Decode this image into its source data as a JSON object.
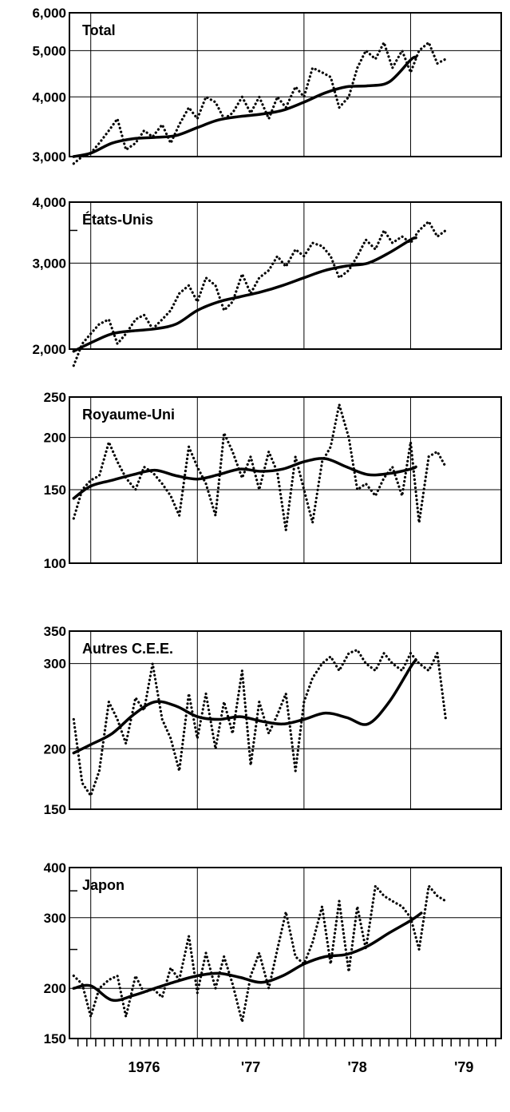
{
  "chart_data": [
    {
      "type": "line",
      "title": "Total",
      "yscale": "log",
      "ylim": [
        3000,
        6000
      ],
      "yticks": [
        {
          "value": 3000,
          "label": "3,000"
        },
        {
          "value": 4000,
          "label": "4,000"
        },
        {
          "value": 5000,
          "label": "5,000"
        },
        {
          "value": 6000,
          "label": "6,000"
        }
      ],
      "minor_yticks": [],
      "xlim": [
        1975.8,
        1979.85
      ],
      "series": [
        {
          "style": "trend",
          "x": [
            1975.84,
            1976.0,
            1976.2,
            1976.4,
            1976.6,
            1976.8,
            1977.0,
            1977.2,
            1977.4,
            1977.6,
            1977.8,
            1978.0,
            1978.2,
            1978.4,
            1978.6,
            1978.8,
            1979.0,
            1979.05
          ],
          "y": [
            3000,
            3050,
            3200,
            3270,
            3290,
            3320,
            3450,
            3580,
            3640,
            3680,
            3750,
            3900,
            4080,
            4200,
            4220,
            4300,
            4780,
            4850
          ]
        },
        {
          "style": "raw",
          "x": [
            1975.84,
            1975.92,
            1976.0,
            1976.08,
            1976.17,
            1976.25,
            1976.33,
            1976.42,
            1976.5,
            1976.58,
            1976.67,
            1976.75,
            1976.83,
            1976.92,
            1977.0,
            1977.08,
            1977.17,
            1977.25,
            1977.33,
            1977.42,
            1977.5,
            1977.58,
            1977.67,
            1977.75,
            1977.83,
            1977.92,
            1978.0,
            1978.08,
            1978.17,
            1978.25,
            1978.33,
            1978.42,
            1978.5,
            1978.58,
            1978.67,
            1978.75,
            1978.83,
            1978.92,
            1979.0,
            1979.08,
            1979.17,
            1979.25,
            1979.33
          ],
          "y": [
            2900,
            3000,
            3050,
            3200,
            3400,
            3600,
            3100,
            3200,
            3400,
            3300,
            3500,
            3200,
            3500,
            3800,
            3600,
            4000,
            3900,
            3600,
            3700,
            4000,
            3700,
            4000,
            3600,
            4000,
            3800,
            4200,
            4000,
            4600,
            4500,
            4400,
            3800,
            4000,
            4600,
            5000,
            4800,
            5200,
            4600,
            5000,
            4500,
            5000,
            5200,
            4700,
            4800
          ]
        }
      ]
    },
    {
      "type": "line",
      "title": "États-Unis",
      "yscale": "log",
      "ylim": [
        2000,
        4000
      ],
      "yticks": [
        {
          "value": 2000,
          "label": "2,000"
        },
        {
          "value": 3000,
          "label": "3,000"
        },
        {
          "value": 4000,
          "label": "4,000"
        }
      ],
      "minor_yticks": [
        3500
      ],
      "xlim": [
        1975.8,
        1979.85
      ],
      "series": [
        {
          "style": "trend",
          "x": [
            1975.84,
            1976.0,
            1976.2,
            1976.4,
            1976.6,
            1976.8,
            1977.0,
            1977.2,
            1977.4,
            1977.6,
            1977.8,
            1978.0,
            1978.2,
            1978.4,
            1978.6,
            1978.8,
            1979.0,
            1979.05
          ],
          "y": [
            1980,
            2060,
            2150,
            2180,
            2200,
            2250,
            2400,
            2500,
            2560,
            2620,
            2700,
            2800,
            2900,
            2960,
            3000,
            3150,
            3350,
            3380
          ]
        },
        {
          "style": "raw",
          "x": [
            1975.84,
            1975.92,
            1976.0,
            1976.08,
            1976.17,
            1976.25,
            1976.33,
            1976.42,
            1976.5,
            1976.58,
            1976.67,
            1976.75,
            1976.83,
            1976.92,
            1977.0,
            1977.08,
            1977.17,
            1977.25,
            1977.33,
            1977.42,
            1977.5,
            1977.58,
            1977.67,
            1977.75,
            1977.83,
            1977.92,
            1978.0,
            1978.08,
            1978.17,
            1978.25,
            1978.33,
            1978.42,
            1978.5,
            1978.58,
            1978.67,
            1978.75,
            1978.83,
            1978.92,
            1979.0,
            1979.08,
            1979.17,
            1979.25,
            1979.33
          ],
          "y": [
            1850,
            2050,
            2150,
            2250,
            2300,
            2050,
            2150,
            2300,
            2350,
            2200,
            2300,
            2400,
            2600,
            2700,
            2500,
            2800,
            2700,
            2400,
            2500,
            2850,
            2600,
            2800,
            2900,
            3100,
            2950,
            3200,
            3100,
            3300,
            3250,
            3100,
            2800,
            2900,
            3100,
            3350,
            3200,
            3500,
            3300,
            3400,
            3300,
            3500,
            3650,
            3400,
            3500
          ]
        }
      ]
    },
    {
      "type": "line",
      "title": "Royaume-Uni",
      "yscale": "log",
      "ylim": [
        100,
        250
      ],
      "yticks": [
        {
          "value": 100,
          "label": "100"
        },
        {
          "value": 150,
          "label": "150"
        },
        {
          "value": 200,
          "label": "200"
        },
        {
          "value": 250,
          "label": "250"
        }
      ],
      "minor_yticks": [],
      "xlim": [
        1975.8,
        1979.85
      ],
      "series": [
        {
          "style": "trend",
          "x": [
            1975.84,
            1976.0,
            1976.2,
            1976.4,
            1976.6,
            1976.8,
            1977.0,
            1977.2,
            1977.4,
            1977.6,
            1977.8,
            1978.0,
            1978.2,
            1978.4,
            1978.6,
            1978.8,
            1979.0,
            1979.05
          ],
          "y": [
            143,
            153,
            158,
            163,
            167,
            162,
            159,
            163,
            168,
            166,
            168,
            175,
            178,
            170,
            163,
            164,
            168,
            170
          ]
        },
        {
          "style": "raw",
          "x": [
            1975.84,
            1975.92,
            1976.0,
            1976.08,
            1976.17,
            1976.25,
            1976.33,
            1976.42,
            1976.5,
            1976.58,
            1976.67,
            1976.75,
            1976.83,
            1976.92,
            1977.0,
            1977.08,
            1977.17,
            1977.25,
            1977.33,
            1977.42,
            1977.5,
            1977.58,
            1977.67,
            1977.75,
            1977.83,
            1977.92,
            1978.0,
            1978.08,
            1978.17,
            1978.25,
            1978.33,
            1978.42,
            1978.5,
            1978.58,
            1978.67,
            1978.75,
            1978.83,
            1978.92,
            1979.0,
            1979.08,
            1979.17,
            1979.25,
            1979.33
          ],
          "y": [
            128,
            150,
            158,
            162,
            195,
            175,
            160,
            150,
            170,
            165,
            155,
            145,
            130,
            190,
            170,
            155,
            130,
            205,
            185,
            160,
            180,
            150,
            185,
            165,
            120,
            180,
            150,
            125,
            175,
            190,
            240,
            200,
            150,
            155,
            145,
            160,
            170,
            145,
            195,
            125,
            180,
            185,
            170
          ]
        }
      ]
    },
    {
      "type": "line",
      "title": "Autres C.E.E.",
      "yscale": "log",
      "ylim": [
        150,
        350
      ],
      "yticks": [
        {
          "value": 150,
          "label": "150"
        },
        {
          "value": 200,
          "label": "200"
        },
        {
          "value": 300,
          "label": "300"
        },
        {
          "value": 350,
          "label": "350"
        }
      ],
      "minor_yticks": [],
      "xlim": [
        1975.8,
        1979.85
      ],
      "series": [
        {
          "style": "trend",
          "x": [
            1975.84,
            1976.0,
            1976.2,
            1976.4,
            1976.6,
            1976.8,
            1977.0,
            1977.2,
            1977.4,
            1977.6,
            1977.8,
            1978.0,
            1978.2,
            1978.4,
            1978.6,
            1978.8,
            1979.0,
            1979.05
          ],
          "y": [
            196,
            204,
            215,
            235,
            250,
            245,
            233,
            230,
            233,
            228,
            225,
            230,
            237,
            232,
            225,
            250,
            295,
            305
          ]
        },
        {
          "style": "raw",
          "x": [
            1975.84,
            1975.92,
            1976.0,
            1976.08,
            1976.17,
            1976.25,
            1976.33,
            1976.42,
            1976.5,
            1976.58,
            1976.67,
            1976.75,
            1976.83,
            1976.92,
            1977.0,
            1977.08,
            1977.17,
            1977.25,
            1977.33,
            1977.42,
            1977.5,
            1977.58,
            1977.67,
            1977.75,
            1977.83,
            1977.92,
            1978.0,
            1978.08,
            1978.17,
            1978.25,
            1978.33,
            1978.42,
            1978.5,
            1978.58,
            1978.67,
            1978.75,
            1978.83,
            1978.92,
            1979.0,
            1979.08,
            1979.17,
            1979.25,
            1979.33
          ],
          "y": [
            230,
            170,
            160,
            180,
            250,
            230,
            205,
            255,
            240,
            300,
            230,
            210,
            180,
            260,
            210,
            260,
            200,
            250,
            215,
            290,
            185,
            250,
            215,
            235,
            260,
            180,
            250,
            280,
            300,
            310,
            290,
            315,
            320,
            300,
            290,
            315,
            300,
            290,
            315,
            300,
            290,
            315,
            230
          ]
        }
      ]
    },
    {
      "type": "line",
      "title": "Japon",
      "yscale": "log",
      "ylim": [
        150,
        400
      ],
      "yticks": [
        {
          "value": 150,
          "label": "150"
        },
        {
          "value": 200,
          "label": "200"
        },
        {
          "value": 300,
          "label": "300"
        },
        {
          "value": 400,
          "label": "400"
        }
      ],
      "minor_yticks": [
        250,
        350
      ],
      "xlim": [
        1975.8,
        1979.85
      ],
      "series": [
        {
          "style": "trend",
          "x": [
            1975.84,
            1976.0,
            1976.2,
            1976.4,
            1976.6,
            1976.8,
            1977.0,
            1977.2,
            1977.4,
            1977.6,
            1977.8,
            1978.0,
            1978.2,
            1978.4,
            1978.6,
            1978.8,
            1979.0,
            1979.1
          ],
          "y": [
            200,
            203,
            187,
            192,
            200,
            208,
            215,
            218,
            213,
            207,
            215,
            230,
            240,
            243,
            255,
            275,
            295,
            308
          ]
        },
        {
          "style": "raw",
          "x": [
            1975.84,
            1975.92,
            1976.0,
            1976.08,
            1976.17,
            1976.25,
            1976.33,
            1976.42,
            1976.5,
            1976.58,
            1976.67,
            1976.75,
            1976.83,
            1976.92,
            1977.0,
            1977.08,
            1977.17,
            1977.25,
            1977.33,
            1977.42,
            1977.5,
            1977.58,
            1977.67,
            1977.75,
            1977.83,
            1977.92,
            1978.0,
            1978.08,
            1978.17,
            1978.25,
            1978.33,
            1978.42,
            1978.5,
            1978.58,
            1978.67,
            1978.75,
            1978.83,
            1978.92,
            1979.0,
            1979.08,
            1979.17,
            1979.25,
            1979.33
          ],
          "y": [
            215,
            205,
            170,
            200,
            210,
            215,
            170,
            215,
            195,
            200,
            190,
            225,
            210,
            270,
            195,
            245,
            200,
            240,
            205,
            165,
            215,
            245,
            200,
            250,
            310,
            240,
            230,
            260,
            320,
            230,
            330,
            220,
            320,
            250,
            360,
            340,
            330,
            320,
            300,
            250,
            360,
            340,
            330
          ]
        }
      ]
    }
  ],
  "x_axis": {
    "labels": [
      {
        "x": 1976.0,
        "label": "1976"
      },
      {
        "x": 1977.0,
        "label": "'77"
      },
      {
        "x": 1978.0,
        "label": "'78"
      },
      {
        "x": 1979.0,
        "label": "'79"
      }
    ],
    "minor_tick_step_months": 1
  }
}
